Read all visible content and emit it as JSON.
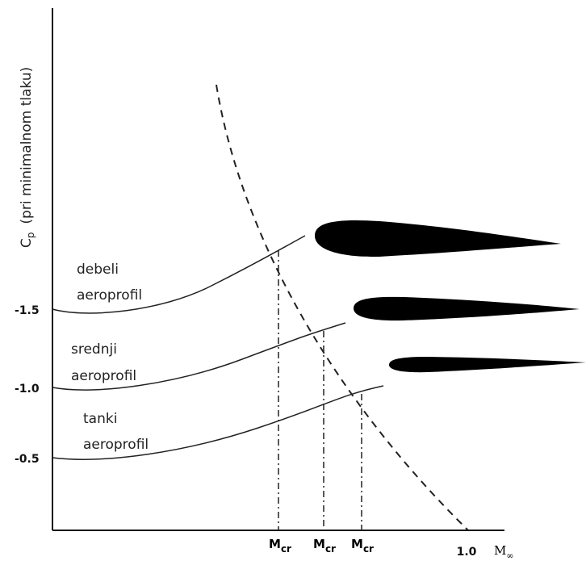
{
  "y_axis": {
    "label": {
      "symbol": "C",
      "subscript": "p",
      "text": "(pri minimalnom tlaku)"
    },
    "ticks": [
      "-1.5",
      "-1.0",
      "-0.5"
    ]
  },
  "x_axis": {
    "ticks": [
      "1.0"
    ],
    "label": {
      "symbol": "M",
      "subscript": "∞"
    }
  },
  "critical_marks": [
    {
      "symbol": "M",
      "subscript": "cr"
    },
    {
      "symbol": "M",
      "subscript": "cr"
    },
    {
      "symbol": "M",
      "subscript": "cr"
    }
  ],
  "curves": [
    {
      "label": [
        "debeli",
        "aeroprofil"
      ]
    },
    {
      "label": [
        "srednji",
        "aeroprofil"
      ]
    },
    {
      "label": [
        "tanki",
        "aeroprofil"
      ]
    }
  ]
}
